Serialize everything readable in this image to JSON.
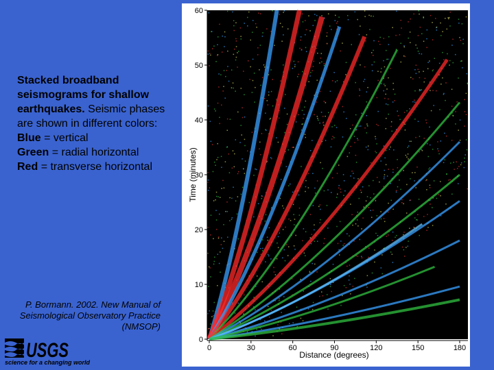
{
  "caption": {
    "title": "Stacked broadband seismograms for shallow earthquakes.",
    "text": "Seismic phases are shown in different colors:",
    "legend": [
      {
        "label": "Blue",
        "text": "= vertical"
      },
      {
        "label": "Green",
        "text": "= radial horizontal"
      },
      {
        "label": "Red",
        "text": "= transverse horizontal"
      }
    ]
  },
  "credit": "P. Bormann. 2002. New Manual of Seismological Observatory Practice (NMSOP)",
  "logo": {
    "name": "USGS",
    "tagline": "science for a changing world"
  },
  "figure": {
    "ylabel": "Time (minutes)",
    "xlabel": "Distance (degrees)",
    "xlim": [
      0,
      180
    ],
    "ylim": [
      0,
      60
    ],
    "xticks": [
      0,
      30,
      60,
      90,
      120,
      150,
      180
    ],
    "yticks": [
      0,
      10,
      20,
      30,
      40,
      50,
      60
    ]
  }
}
